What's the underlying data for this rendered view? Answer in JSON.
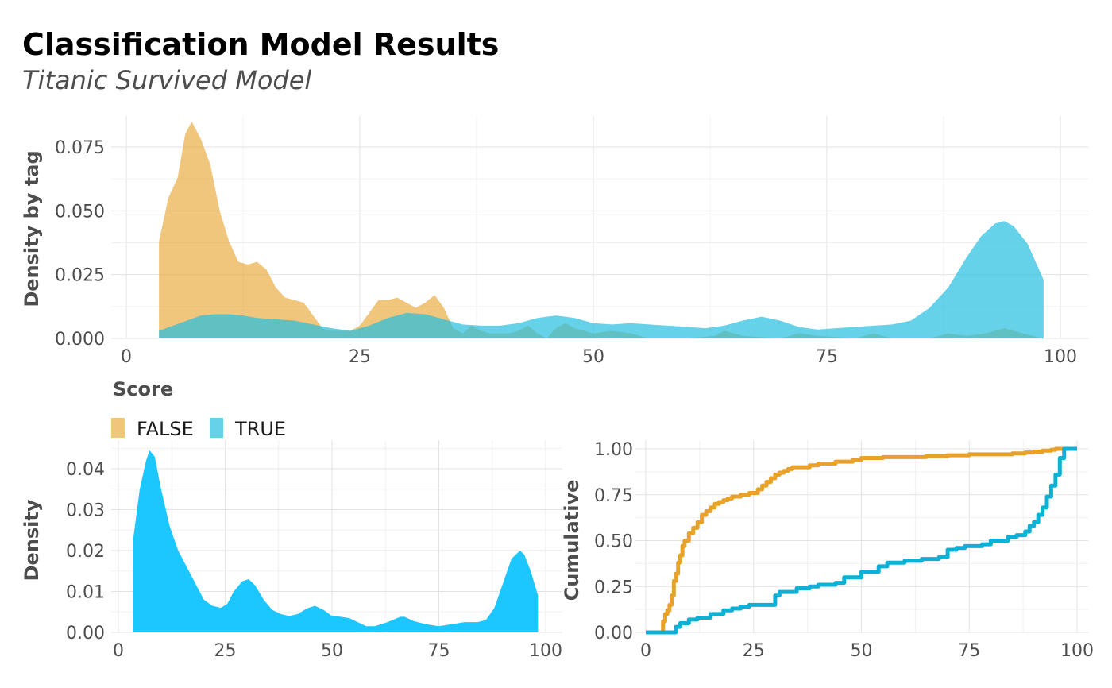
{
  "title": "Classification Model Results",
  "subtitle": "Titanic Survived Model",
  "colors": {
    "false": "#E69F25",
    "true": "#24BFDF",
    "density": "#1CC6FF",
    "cum_false": "#E8A129",
    "cum_true": "#0EB1D6",
    "grid": "#E3E3E3",
    "axis_text": "#4d4d4d"
  },
  "chart_data": [
    {
      "type": "area",
      "xlabel": "Score",
      "ylabel": "Density by tag",
      "xlim": [
        0,
        100
      ],
      "ylim": [
        0,
        0.085
      ],
      "x_ticks": [
        "0",
        "25",
        "50",
        "75",
        "100"
      ],
      "y_ticks": [
        "0.000",
        "0.025",
        "0.050",
        "0.075"
      ],
      "legend": {
        "position": "bottom-left",
        "entries": [
          "FALSE",
          "TRUE"
        ]
      },
      "series": [
        {
          "name": "FALSE",
          "x": [
            3.5,
            4.5,
            5.5,
            6.3,
            7,
            8,
            9,
            10,
            11,
            12,
            13,
            14,
            15,
            16,
            17,
            18,
            19,
            20,
            21,
            22,
            23,
            24,
            25,
            26,
            27,
            28,
            29,
            30,
            31,
            32,
            33,
            34,
            35,
            36,
            37,
            38,
            39,
            40,
            41,
            42,
            43,
            44,
            45,
            46,
            47,
            48,
            50,
            52,
            54,
            56,
            60,
            63,
            64,
            66,
            70,
            72,
            74,
            78,
            80,
            82,
            86,
            88,
            90,
            92,
            94,
            96,
            98.2
          ],
          "y": [
            0.038,
            0.055,
            0.063,
            0.08,
            0.085,
            0.078,
            0.068,
            0.05,
            0.038,
            0.03,
            0.029,
            0.03,
            0.027,
            0.02,
            0.016,
            0.015,
            0.014,
            0.009,
            0.004,
            0.003,
            0.003,
            0.003,
            0.005,
            0.01,
            0.015,
            0.015,
            0.016,
            0.014,
            0.012,
            0.014,
            0.017,
            0.012,
            0.004,
            0.002,
            0.005,
            0.003,
            0.002,
            0.002,
            0.002,
            0.003,
            0.005,
            0.002,
            0.0,
            0.004,
            0.006,
            0.004,
            0.002,
            0.003,
            0.002,
            0.0,
            0.0,
            0.001,
            0.003,
            0.001,
            0.0,
            0.002,
            0.001,
            0.0,
            0.002,
            0.0,
            0.0,
            0.002,
            0.001,
            0.002,
            0.004,
            0.002,
            0.0
          ]
        },
        {
          "name": "TRUE",
          "x": [
            3.5,
            5,
            6.5,
            8,
            9.5,
            11,
            12.5,
            14,
            16,
            18,
            20,
            22,
            24,
            26,
            28,
            30,
            32,
            34,
            36,
            38,
            40,
            42,
            44,
            46,
            48,
            50,
            52,
            54,
            56,
            58,
            60,
            62,
            64,
            66,
            68,
            70,
            72,
            74,
            76,
            78,
            80,
            82,
            84,
            86,
            88,
            90,
            91.5,
            93,
            94,
            95,
            96.5,
            98.2
          ],
          "y": [
            0.003,
            0.005,
            0.007,
            0.009,
            0.0095,
            0.0095,
            0.009,
            0.008,
            0.0075,
            0.007,
            0.0055,
            0.004,
            0.003,
            0.005,
            0.008,
            0.01,
            0.0095,
            0.0075,
            0.0055,
            0.005,
            0.005,
            0.006,
            0.008,
            0.009,
            0.008,
            0.006,
            0.0055,
            0.006,
            0.0055,
            0.005,
            0.0045,
            0.004,
            0.005,
            0.007,
            0.0085,
            0.007,
            0.0045,
            0.0035,
            0.004,
            0.0045,
            0.005,
            0.0055,
            0.007,
            0.012,
            0.02,
            0.032,
            0.04,
            0.045,
            0.046,
            0.044,
            0.037,
            0.023
          ]
        }
      ]
    },
    {
      "type": "area",
      "xlabel": "",
      "ylabel": "Density",
      "xlim": [
        0,
        100
      ],
      "ylim": [
        0,
        0.045
      ],
      "x_ticks": [
        "0",
        "25",
        "50",
        "75",
        "100"
      ],
      "y_ticks": [
        "0.00",
        "0.01",
        "0.02",
        "0.03",
        "0.04"
      ],
      "series": [
        {
          "name": "",
          "x": [
            3.5,
            5,
            6.5,
            7.3,
            8.5,
            10,
            12,
            14,
            17,
            20,
            22,
            24,
            25.5,
            27,
            29,
            30.5,
            32,
            34,
            36,
            38,
            40,
            42,
            44,
            46,
            48,
            50,
            52,
            54,
            56,
            58,
            60,
            63,
            66,
            67,
            69,
            72,
            75,
            78,
            81,
            84,
            86,
            88,
            90,
            92,
            94,
            95,
            96.5,
            98.2
          ],
          "y": [
            0.023,
            0.035,
            0.042,
            0.0445,
            0.043,
            0.035,
            0.026,
            0.02,
            0.014,
            0.008,
            0.0065,
            0.006,
            0.007,
            0.01,
            0.0125,
            0.013,
            0.0115,
            0.008,
            0.0055,
            0.0045,
            0.004,
            0.0045,
            0.0058,
            0.0065,
            0.0055,
            0.004,
            0.0038,
            0.0035,
            0.0025,
            0.0015,
            0.0015,
            0.0025,
            0.0038,
            0.0038,
            0.0028,
            0.002,
            0.0015,
            0.002,
            0.0025,
            0.0025,
            0.003,
            0.006,
            0.012,
            0.018,
            0.02,
            0.019,
            0.015,
            0.009
          ]
        }
      ]
    },
    {
      "type": "line",
      "xlabel": "",
      "ylabel": "Cumulative",
      "xlim": [
        0,
        100
      ],
      "ylim": [
        0,
        1
      ],
      "x_ticks": [
        "0",
        "25",
        "50",
        "75",
        "100"
      ],
      "y_ticks": [
        "0.00",
        "0.25",
        "0.50",
        "0.75",
        "1.00"
      ],
      "series": [
        {
          "name": "FALSE",
          "x": [
            0,
            3.5,
            4,
            4.5,
            5,
            5.5,
            6,
            6.5,
            7,
            7.5,
            8,
            8.5,
            9,
            10,
            11,
            12,
            13,
            14,
            15,
            16,
            17,
            18,
            19,
            20,
            22,
            24,
            26,
            27,
            28,
            29,
            30,
            31,
            32,
            33,
            34,
            36,
            38,
            40,
            42,
            44,
            46,
            48,
            50,
            52,
            55,
            60,
            65,
            70,
            75,
            80,
            85,
            88,
            90,
            92,
            94,
            95,
            96,
            98,
            100
          ],
          "y": [
            0,
            0,
            0.06,
            0.1,
            0.12,
            0.15,
            0.2,
            0.28,
            0.32,
            0.38,
            0.42,
            0.47,
            0.5,
            0.54,
            0.57,
            0.6,
            0.64,
            0.66,
            0.68,
            0.7,
            0.71,
            0.72,
            0.73,
            0.74,
            0.75,
            0.76,
            0.78,
            0.8,
            0.82,
            0.84,
            0.86,
            0.87,
            0.88,
            0.89,
            0.9,
            0.9,
            0.91,
            0.92,
            0.92,
            0.93,
            0.93,
            0.94,
            0.95,
            0.95,
            0.955,
            0.955,
            0.96,
            0.965,
            0.97,
            0.97,
            0.975,
            0.98,
            0.985,
            0.99,
            0.995,
            1.0,
            1.0,
            1.0,
            1.0
          ]
        },
        {
          "name": "TRUE",
          "x": [
            0,
            6,
            7,
            8,
            10,
            12,
            15,
            18,
            20,
            22,
            24,
            26,
            28,
            30,
            31,
            32,
            35,
            38,
            40,
            42,
            44,
            46,
            48,
            50,
            52,
            54,
            56,
            58,
            60,
            62,
            64,
            66,
            68,
            70,
            72,
            74,
            76,
            78,
            80,
            82,
            84,
            86,
            88,
            89,
            90,
            91,
            92,
            93,
            94,
            95,
            96,
            97,
            98,
            100
          ],
          "y": [
            0,
            0,
            0.03,
            0.05,
            0.07,
            0.08,
            0.1,
            0.12,
            0.13,
            0.14,
            0.15,
            0.15,
            0.15,
            0.2,
            0.22,
            0.22,
            0.24,
            0.25,
            0.26,
            0.26,
            0.27,
            0.3,
            0.3,
            0.33,
            0.33,
            0.36,
            0.38,
            0.38,
            0.39,
            0.39,
            0.4,
            0.4,
            0.41,
            0.45,
            0.46,
            0.47,
            0.47,
            0.48,
            0.5,
            0.5,
            0.52,
            0.53,
            0.55,
            0.58,
            0.6,
            0.64,
            0.68,
            0.74,
            0.8,
            0.86,
            0.95,
            1.0,
            1.0,
            1.0
          ]
        }
      ]
    }
  ]
}
